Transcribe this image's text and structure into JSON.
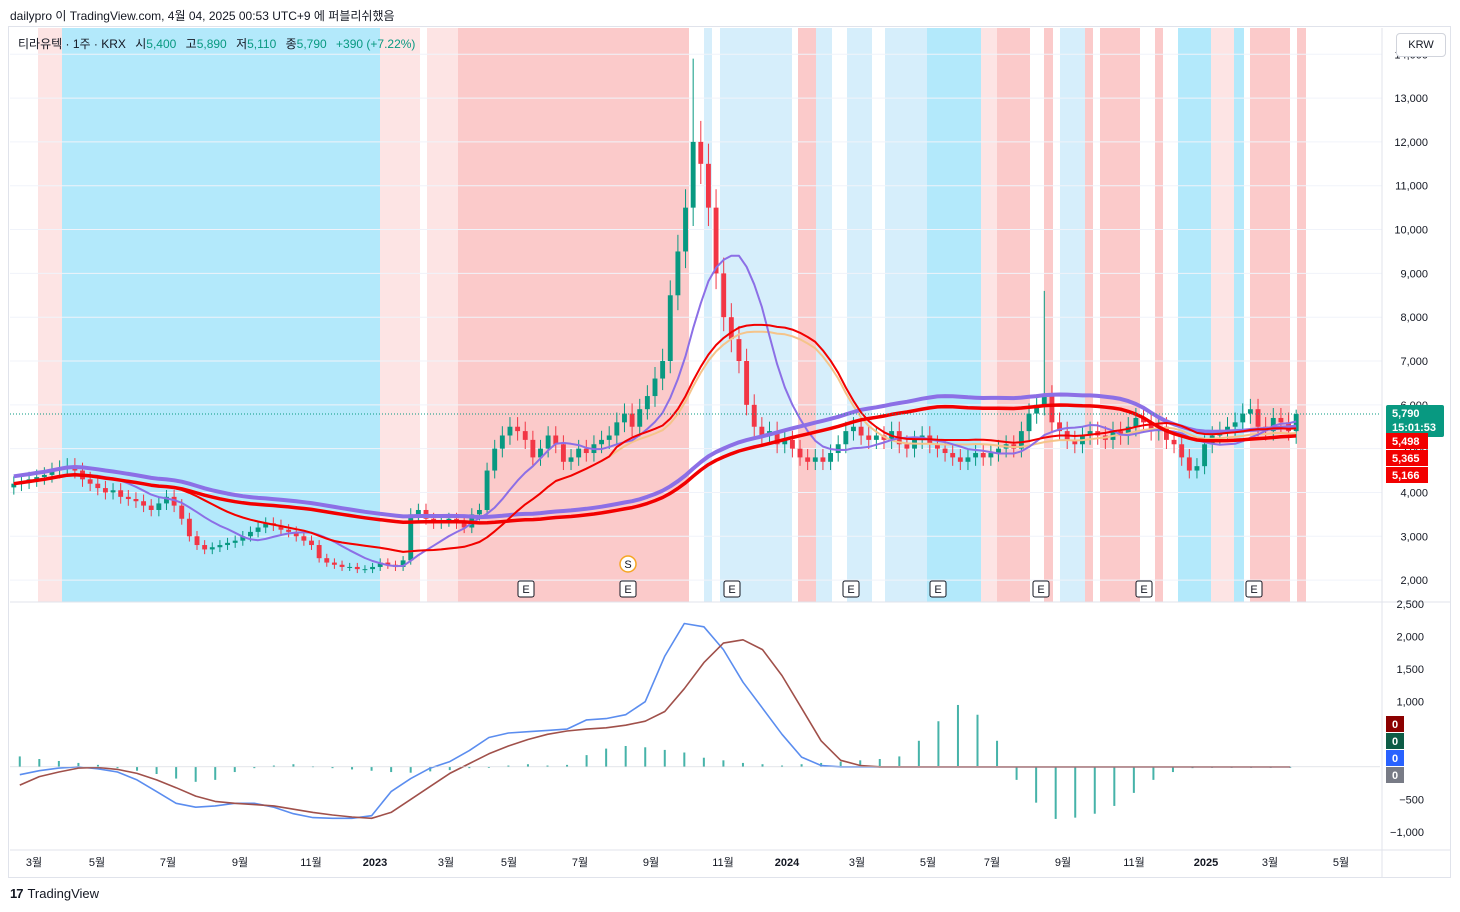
{
  "header": {
    "attribution": "dailypro 이 TradingView.com, 4월 04, 2025 00:53 UTC+9 에 퍼블리쉬했음"
  },
  "legend": {
    "symbol": "티라유텍 · 1주 · KRX",
    "open_label": "시",
    "open": "5,400",
    "high_label": "고",
    "high": "5,890",
    "low_label": "저",
    "low": "5,110",
    "close_label": "종",
    "close": "5,790",
    "change": "+390 (+7.22%)"
  },
  "currency": "KRW",
  "footer": {
    "brand": "TradingView",
    "logo": "17"
  },
  "colors": {
    "up": "#089981",
    "down": "#f23645",
    "bg_red": "#f8a5a5",
    "bg_blue": "#7fd9f5",
    "macd": "#5b8def",
    "signal": "#a0504a",
    "ma_red": "#f20000",
    "ma_purple": "#8c6fe6",
    "ma_orange": "#f5c48a"
  },
  "chart_data": [
    {
      "type": "candlestick",
      "ylim": [
        1500,
        14600
      ],
      "yticks": [
        2000,
        3000,
        4000,
        5000,
        6000,
        7000,
        8000,
        9000,
        10000,
        11000,
        12000,
        13000,
        14000
      ],
      "ytick_labels": [
        "2,000",
        "3,000",
        "4,000",
        "5,000",
        "6,000",
        "7,000",
        "8,000",
        "9,000",
        "10,000",
        "11,000",
        "12,000",
        "13,000",
        "14,000"
      ],
      "x_labels": [
        "3월",
        "5월",
        "7월",
        "9월",
        "11월",
        "2023",
        "3월",
        "5월",
        "7월",
        "9월",
        "11월",
        "2024",
        "3월",
        "5월",
        "7월",
        "9월",
        "11월",
        "2025",
        "3월",
        "5월"
      ],
      "x_label_bold": [
        false,
        false,
        false,
        false,
        false,
        true,
        false,
        false,
        false,
        false,
        false,
        true,
        false,
        false,
        false,
        false,
        false,
        true,
        false,
        false
      ],
      "last_price": "5,790",
      "countdown": "15:01:53",
      "ma_tags": [
        "5,498",
        "5,365",
        "5,166"
      ],
      "event_markers": [
        "E",
        "E",
        "E",
        "E",
        "E",
        "E",
        "E",
        "E"
      ],
      "split_marker": "S",
      "weekly_closes": [
        4200,
        4250,
        4300,
        4350,
        4400,
        4500,
        4550,
        4600,
        4500,
        4300,
        4200,
        4100,
        4000,
        4050,
        3900,
        3850,
        3800,
        3700,
        3600,
        3750,
        3900,
        3700,
        3400,
        3000,
        2800,
        2700,
        2750,
        2800,
        2850,
        2900,
        3000,
        3100,
        3200,
        3300,
        3250,
        3150,
        3100,
        3000,
        2900,
        2800,
        2500,
        2400,
        2350,
        2300,
        2300,
        2250,
        2250,
        2300,
        2400,
        2350,
        2300,
        2450,
        3500,
        3600,
        3400,
        3300,
        3350,
        3400,
        3300,
        3200,
        3500,
        3600,
        4500,
        5000,
        5300,
        5500,
        5400,
        5200,
        4800,
        5000,
        5300,
        5100,
        4700,
        4800,
        5000,
        4900,
        5100,
        5200,
        5300,
        5600,
        5800,
        5500,
        5900,
        6200,
        6600,
        7000,
        8500,
        9500,
        10500,
        12000,
        11500,
        10500,
        9000,
        8000,
        7500,
        7000,
        6000,
        5500,
        5300,
        5400,
        5100,
        5200,
        5000,
        4800,
        4700,
        4800,
        4700,
        4900,
        5100,
        5400,
        5500,
        5300,
        5200,
        5300,
        5200,
        5400,
        5100,
        5000,
        5200,
        5300,
        5100,
        5000,
        4900,
        4800,
        4700,
        4800,
        4900,
        4800,
        4900,
        5000,
        5100,
        5000,
        5400,
        5800,
        6000,
        6200,
        5600,
        5400,
        5200,
        5100,
        5300,
        5400,
        5300,
        5200,
        5400,
        5300,
        5500,
        5700,
        5600,
        5400,
        5500,
        5200,
        5100,
        4800,
        4500,
        4600,
        5100,
        5300,
        5400,
        5500,
        5600,
        5800,
        5900,
        5500,
        5400,
        5700,
        5600,
        5400,
        5790
      ],
      "wick_extremes": {
        "max_high": 13900,
        "high_2024_aug": 8600,
        "last_high": 5890,
        "last_low": 5110
      }
    },
    {
      "type": "macd",
      "ylim": [
        -1200,
        2500
      ],
      "yticks": [
        2500,
        2000,
        1500,
        1000,
        -500,
        -1000
      ],
      "ytick_labels": [
        "2,500",
        "2,000",
        "1,500",
        "1,000",
        "−500",
        "−1,000"
      ],
      "series": [
        {
          "name": "",
          "color": "#5b8def",
          "values": [
            -120,
            -60,
            -20,
            0,
            -30,
            -80,
            -200,
            -380,
            -560,
            -620,
            -600,
            -560,
            -560,
            -620,
            -720,
            -780,
            -790,
            -790,
            -750,
            -380,
            -180,
            -20,
            80,
            250,
            450,
            520,
            540,
            560,
            580,
            720,
            740,
            800,
            1000,
            1700,
            2200,
            2150,
            1800,
            1300,
            900,
            500,
            150,
            20,
            0,
            0,
            0,
            0,
            0,
            0,
            0,
            0,
            0,
            0,
            0,
            0,
            0,
            0,
            0,
            0,
            0,
            0,
            0,
            0,
            0,
            0,
            0,
            0
          ]
        },
        {
          "name": "",
          "color": "#a0504a",
          "values": [
            -280,
            -150,
            -80,
            -20,
            -10,
            -40,
            -100,
            -200,
            -320,
            -450,
            -530,
            -560,
            -580,
            -600,
            -650,
            -700,
            -740,
            -770,
            -790,
            -700,
            -500,
            -300,
            -100,
            50,
            200,
            320,
            420,
            500,
            550,
            580,
            600,
            640,
            700,
            850,
            1200,
            1600,
            1900,
            1950,
            1800,
            1400,
            900,
            400,
            100,
            20,
            0,
            0,
            0,
            0,
            0,
            0,
            0,
            0,
            0,
            0,
            0,
            0,
            0,
            0,
            0,
            0,
            0,
            0,
            0,
            0,
            0,
            0
          ]
        }
      ],
      "histogram": [
        160,
        120,
        90,
        60,
        30,
        -20,
        -60,
        -110,
        -180,
        -230,
        -200,
        -80,
        -20,
        20,
        40,
        10,
        -20,
        -40,
        -60,
        -80,
        -90,
        -70,
        -50,
        -20,
        -10,
        20,
        40,
        20,
        30,
        180,
        280,
        320,
        300,
        260,
        220,
        140,
        100,
        60,
        40,
        20,
        40,
        60,
        80,
        100,
        120,
        160,
        400,
        700,
        950,
        800,
        400,
        -200,
        -550,
        -800,
        -780,
        -720,
        -600,
        -400,
        -200,
        -80,
        -20,
        0,
        0,
        0,
        0,
        0
      ],
      "indicator_tags": [
        "0",
        "0",
        "0",
        "0"
      ]
    }
  ]
}
